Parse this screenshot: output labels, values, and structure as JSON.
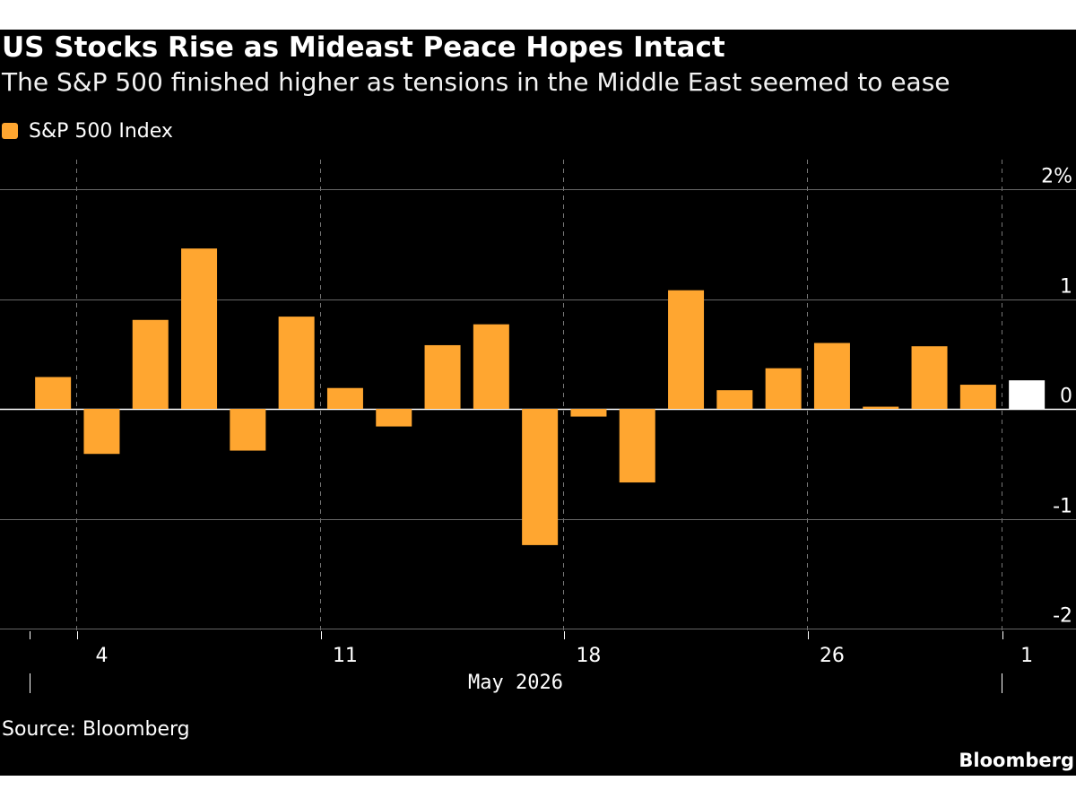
{
  "header": {
    "title": "US Stocks Rise as Mideast Peace Hopes Intact",
    "subtitle": "The S&P 500 finished higher as tensions in the Middle East seemed to ease"
  },
  "footer": {
    "source": "Source: Bloomberg",
    "brand": "Bloomberg"
  },
  "colors": {
    "bar": "#ffa630",
    "highlight": "#ffffff",
    "background": "#000000"
  },
  "chart_data": {
    "type": "bar",
    "title": "US Stocks Rise as Mideast Peace Hopes Intact",
    "subtitle": "The S&P 500 finished higher as tensions in the Middle East seemed to ease",
    "series": [
      {
        "name": "S&P 500 Index",
        "dates": [
          "2026-05-01",
          "2026-05-04",
          "2026-05-05",
          "2026-05-06",
          "2026-05-07",
          "2026-05-08",
          "2026-05-11",
          "2026-05-12",
          "2026-05-13",
          "2026-05-14",
          "2026-05-15",
          "2026-05-18",
          "2026-05-19",
          "2026-05-20",
          "2026-05-21",
          "2026-05-22",
          "2026-05-26",
          "2026-05-27",
          "2026-05-28",
          "2026-05-29",
          "2026-06-01"
        ],
        "values": [
          0.29,
          -0.41,
          0.81,
          1.46,
          -0.38,
          0.84,
          0.19,
          -0.16,
          0.58,
          0.77,
          -1.24,
          -0.07,
          -0.67,
          1.08,
          0.17,
          0.37,
          0.6,
          0.02,
          0.57,
          0.22,
          0.26
        ]
      }
    ],
    "highlight_last": true,
    "ylim": [
      -2,
      2
    ],
    "yticks": [
      "2%",
      "1",
      "0",
      "-1",
      "-2"
    ],
    "yticks_values": [
      2,
      1,
      0,
      -1,
      -2
    ],
    "xtick_labels": [
      {
        "label": "4",
        "date": "2026-05-04"
      },
      {
        "label": "11",
        "date": "2026-05-11"
      },
      {
        "label": "18",
        "date": "2026-05-18"
      },
      {
        "label": "26",
        "date": "2026-05-26"
      },
      {
        "label": "1",
        "date": "2026-06-01"
      }
    ],
    "period_label": "May 2026",
    "xlabel": "",
    "ylabel": "",
    "grid": true,
    "legend": "top-left"
  }
}
